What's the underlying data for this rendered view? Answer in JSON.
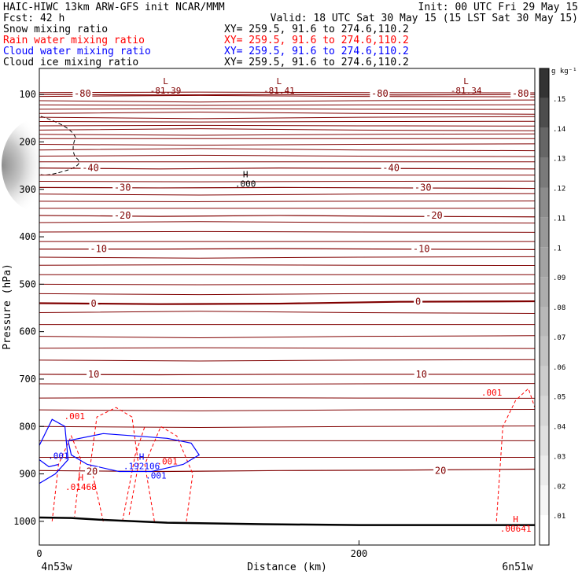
{
  "header": {
    "left_lines": [
      {
        "text": "HAIC-HIWC 13km ARW-GFS init   NCAR/MMM",
        "color": "#000000"
      },
      {
        "text": "Fcst:   42 h",
        "color": "#000000"
      },
      {
        "text": "Snow mixing ratio",
        "color": "#000000"
      },
      {
        "text": "Rain water mixing ratio",
        "color": "#ff0000"
      },
      {
        "text": "Cloud water mixing ratio",
        "color": "#0000ff"
      },
      {
        "text": "Cloud ice mixing ratio",
        "color": "#000000"
      }
    ],
    "right_lines": [
      {
        "text": "Init: 00 UTC Fri 29 May 15",
        "color": "#000000"
      },
      {
        "text": "Valid: 18 UTC Sat 30 May 15 (15 LST Sat 30 May 15)",
        "color": "#000000"
      },
      {
        "text": "XY= 259.5, 91.6 to 274.6,110.2",
        "color": "#000000"
      },
      {
        "text": "XY= 259.5, 91.6 to 274.6,110.2",
        "color": "#ff0000"
      },
      {
        "text": "XY= 259.5, 91.6 to 274.6,110.2",
        "color": "#0000ff"
      },
      {
        "text": "XY= 259.5, 91.6 to 274.6,110.2",
        "color": "#000000"
      }
    ]
  },
  "colors": {
    "temperature": "#800000",
    "rain": "#ff0000",
    "cloud_water": "#0000ff",
    "snow": "#000000",
    "terrain": "#000000"
  },
  "chart_data": {
    "type": "contour",
    "xlabel": "Distance (km)",
    "ylabel": "Pressure (hPa)",
    "xlim": [
      0,
      310
    ],
    "ylim": [
      1050,
      45
    ],
    "x_ticks": [
      0,
      200
    ],
    "y_ticks": [
      100,
      200,
      300,
      400,
      500,
      600,
      700,
      800,
      900,
      1000
    ],
    "x_end_labels": [
      "4n53w",
      "6n51w"
    ],
    "colorbar": {
      "unit": "g kg⁻¹",
      "levels": [
        ".01",
        ".02",
        ".03",
        ".04",
        ".05",
        ".06",
        ".07",
        ".08",
        ".09",
        ".1",
        ".11",
        ".12",
        ".13",
        ".14",
        ".15"
      ],
      "shades": [
        "#ffffff",
        "#f5f5f5",
        "#ebebeb",
        "#e0e0e0",
        "#d6d6d6",
        "#cccccc",
        "#c2c2c2",
        "#b8b8b8",
        "#adadad",
        "#a3a3a3",
        "#999999",
        "#8c8c8c",
        "#7a7a7a",
        "#666666",
        "#4d4d4d",
        "#333333"
      ]
    },
    "temperature_contours": [
      {
        "label": "-80",
        "pressure": [
          100,
          101,
          100,
          101,
          100
        ]
      },
      {
        "label": "-40",
        "pressure": [
          255,
          257,
          255,
          256,
          257
        ]
      },
      {
        "label": "-30",
        "pressure": [
          296,
          297,
          296,
          297,
          298
        ]
      },
      {
        "label": "-20",
        "pressure": [
          355,
          357,
          355,
          357,
          358
        ]
      },
      {
        "label": "-10",
        "pressure": [
          426,
          426,
          425,
          426,
          427
        ]
      },
      {
        "label": "0",
        "pressure": [
          540,
          542,
          541,
          537,
          536
        ]
      },
      {
        "label": "10",
        "pressure": [
          690,
          691,
          690,
          690,
          690
        ]
      },
      {
        "label": "20",
        "pressure": [
          893,
          895,
          893,
          892,
          890
        ]
      }
    ],
    "temperature_labels": [
      {
        "text": "-80",
        "x": 27,
        "p": 98
      },
      {
        "text": "-80",
        "x": 213,
        "p": 98
      },
      {
        "text": "-80",
        "x": 301,
        "p": 98
      },
      {
        "text": "-40",
        "x": 32,
        "p": 255
      },
      {
        "text": "-40",
        "x": 220,
        "p": 255
      },
      {
        "text": "-30",
        "x": 52,
        "p": 296
      },
      {
        "text": "-30",
        "x": 240,
        "p": 296
      },
      {
        "text": "-20",
        "x": 52,
        "p": 355
      },
      {
        "text": "-20",
        "x": 247,
        "p": 355
      },
      {
        "text": "-10",
        "x": 37,
        "p": 426
      },
      {
        "text": "-10",
        "x": 239,
        "p": 426
      },
      {
        "text": "0",
        "x": 34,
        "p": 541
      },
      {
        "text": "0",
        "x": 237,
        "p": 537
      },
      {
        "text": "10",
        "x": 34,
        "p": 690
      },
      {
        "text": "10",
        "x": 239,
        "p": 690
      },
      {
        "text": "20",
        "x": 33,
        "p": 895
      },
      {
        "text": "20",
        "x": 251,
        "p": 893
      }
    ],
    "extrema": [
      {
        "symbol": "L",
        "value": "-81.39",
        "x": 79,
        "p": 78,
        "color": "#800000"
      },
      {
        "symbol": "L",
        "value": "-81.41",
        "x": 150,
        "p": 78,
        "color": "#800000"
      },
      {
        "symbol": "L",
        "value": "-81.34",
        "x": 267,
        "p": 78,
        "color": "#800000"
      },
      {
        "symbol": "H",
        "value": ".000",
        "x": 129,
        "p": 275,
        "color": "#000000"
      },
      {
        "symbol": "H",
        "value": ".192106",
        "x": 64,
        "p": 870,
        "color": "#0000ff"
      },
      {
        "symbol": "H",
        "value": ".01468",
        "x": 26,
        "p": 914,
        "color": "#ff0000"
      },
      {
        "symbol": "H",
        "value": ".00641",
        "x": 298,
        "p": 1002,
        "color": "#ff0000"
      }
    ],
    "moisture_labels": [
      {
        "text": ".001",
        "x": 22,
        "p": 785,
        "color": "#ff0000"
      },
      {
        "text": ".001",
        "x": 80,
        "p": 880,
        "color": "#ff0000"
      },
      {
        "text": ".001",
        "x": 283,
        "p": 735,
        "color": "#ff0000"
      },
      {
        "text": ".001",
        "x": 12,
        "p": 868,
        "color": "#0000ff"
      },
      {
        "text": ".001",
        "x": 73,
        "p": 910,
        "color": "#0000ff"
      }
    ]
  }
}
